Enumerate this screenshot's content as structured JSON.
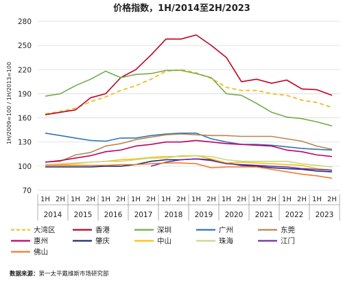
{
  "chart_data": {
    "type": "line",
    "title": "价格指数，1H/2014至2H/2023",
    "ylabel": "1H/2009=100 / 1H/2013=100",
    "xlabel": "",
    "ylim": [
      70,
      280
    ],
    "yticks": [
      70,
      100,
      130,
      160,
      190,
      220,
      250,
      280
    ],
    "grid": "horizontal",
    "legend_position": "bottom",
    "x": [
      "1H 2014",
      "2H 2014",
      "1H 2015",
      "2H 2015",
      "1H 2016",
      "2H 2016",
      "1H 2017",
      "2H 2017",
      "1H 2018",
      "2H 2018",
      "1H 2019",
      "2H 2019",
      "1H 2020",
      "2H 2020",
      "1H 2021",
      "2H 2021",
      "1H 2022",
      "2H 2022",
      "1H 2023",
      "2H 2023"
    ],
    "half_labels": [
      "1H",
      "2H"
    ],
    "years": [
      "2014",
      "2015",
      "2016",
      "2017",
      "2018",
      "2019",
      "2020",
      "2021",
      "2022",
      "2023"
    ],
    "series": [
      {
        "name": "大湾区",
        "color": "#F2C12E",
        "dashed": true,
        "values": [
          165,
          168,
          172,
          180,
          186,
          194,
          200,
          208,
          218,
          220,
          216,
          209,
          198,
          194,
          194,
          190,
          188,
          182,
          179,
          173
        ]
      },
      {
        "name": "香港",
        "color": "#C0001F",
        "dashed": false,
        "values": [
          164,
          167,
          170,
          185,
          190,
          210,
          220,
          238,
          258,
          258,
          263,
          250,
          235,
          205,
          208,
          203,
          207,
          196,
          195,
          188
        ]
      },
      {
        "name": "深圳",
        "color": "#70AD47",
        "dashed": false,
        "values": [
          187,
          190,
          200,
          208,
          218,
          210,
          214,
          215,
          219,
          219,
          215,
          210,
          190,
          188,
          178,
          167,
          161,
          159,
          155,
          150
        ]
      },
      {
        "name": "广州",
        "color": "#2E75B6",
        "dashed": false,
        "values": [
          141,
          138,
          135,
          132,
          131,
          135,
          135,
          138,
          140,
          141,
          141,
          134,
          130,
          127,
          127,
          126,
          124,
          122,
          121,
          120
        ]
      },
      {
        "name": "东莞",
        "color": "#B8864E",
        "dashed": false,
        "values": [
          105,
          106,
          114,
          117,
          125,
          128,
          133,
          136,
          139,
          140,
          139,
          138,
          138,
          137,
          137,
          137,
          134,
          131,
          125,
          121
        ]
      },
      {
        "name": "惠州",
        "color": "#C00060",
        "dashed": false,
        "values": [
          105,
          107,
          110,
          113,
          118,
          120,
          125,
          127,
          130,
          130,
          132,
          130,
          128,
          127,
          126,
          125,
          120,
          118,
          114,
          112
        ]
      },
      {
        "name": "肇庆",
        "color": "#1F2A6B",
        "dashed": false,
        "values": [
          99,
          99,
          99,
          99,
          100,
          100,
          102,
          106,
          108,
          108,
          109,
          108,
          104,
          101,
          100,
          98,
          97,
          96,
          94,
          93
        ]
      },
      {
        "name": "中山",
        "color": "#FFC000",
        "dashed": false,
        "values": [
          102,
          102,
          103,
          105,
          106,
          108,
          109,
          111,
          112,
          112,
          113,
          109,
          104,
          105,
          104,
          103,
          102,
          101,
          97,
          95
        ]
      },
      {
        "name": "珠海",
        "color": "#C5D88B",
        "dashed": false,
        "values": [
          102,
          103,
          104,
          105,
          106,
          106,
          108,
          110,
          110,
          113,
          113,
          112,
          108,
          106,
          106,
          106,
          106,
          103,
          101,
          99
        ]
      },
      {
        "name": "江门",
        "color": "#6F2DA8",
        "dashed": false,
        "values": [
          null,
          null,
          null,
          null,
          null,
          null,
          null,
          100,
          105,
          108,
          109,
          107,
          103,
          102,
          101,
          100,
          99,
          97,
          96,
          95
        ]
      },
      {
        "name": "佛山",
        "color": "#ED7D31",
        "dashed": false,
        "values": [
          101,
          101,
          101,
          101,
          101,
          102,
          102,
          103,
          104,
          104,
          103,
          98,
          99,
          99,
          99,
          96,
          93,
          90,
          88,
          85
        ]
      }
    ]
  },
  "footer": {
    "source_label": "数据来源：",
    "source_text": "第一太平戴维斯市场研究部"
  }
}
